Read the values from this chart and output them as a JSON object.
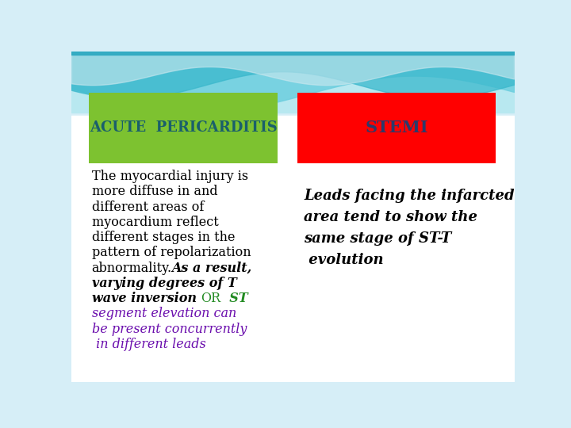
{
  "bg_color": "#d6eef7",
  "left_box_color": "#7dc230",
  "right_box_color": "#ff0000",
  "left_box_text": "ACUTE  PERICARDITIS",
  "left_box_text_color": "#1a5f6b",
  "right_box_text": "STEMI",
  "right_box_text_color": "#2b3a6b",
  "right_body_text": "Leads facing the infarcted\narea tend to show the\nsame stage of ST-T\n evolution",
  "right_body_color": "#000000"
}
